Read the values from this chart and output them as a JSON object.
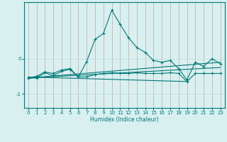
{
  "xlabel": "Humidex (Indice chaleur)",
  "bg_color": "#d8f0f0",
  "grid_color": "#c0dede",
  "line_color": "#007878",
  "xlim": [
    -0.5,
    23.5
  ],
  "ylim": [
    -1.4,
    1.6
  ],
  "xticks": [
    0,
    1,
    2,
    3,
    4,
    5,
    6,
    7,
    8,
    9,
    10,
    11,
    12,
    13,
    14,
    15,
    16,
    17,
    18,
    19,
    20,
    21,
    22,
    23
  ],
  "ytick_vals": [
    -1,
    0
  ],
  "series1_x": [
    0,
    1,
    2,
    3,
    4,
    5,
    6,
    7,
    8,
    9,
    10,
    11,
    12,
    13,
    14,
    15,
    16,
    17,
    18,
    19,
    20,
    21,
    22,
    23
  ],
  "series1_y": [
    -0.55,
    -0.5,
    -0.38,
    -0.42,
    -0.32,
    -0.28,
    -0.52,
    -0.08,
    0.55,
    0.72,
    1.38,
    0.98,
    0.6,
    0.32,
    0.18,
    -0.05,
    -0.1,
    -0.05,
    -0.28,
    -0.6,
    -0.1,
    -0.22,
    0.0,
    -0.15
  ],
  "series2_x": [
    0,
    1,
    2,
    3,
    4,
    5,
    6,
    7,
    8,
    9,
    10,
    11,
    12,
    13,
    14,
    15,
    16,
    17,
    18,
    19,
    20,
    21,
    22,
    23
  ],
  "series2_y": [
    -0.55,
    -0.55,
    -0.4,
    -0.48,
    -0.36,
    -0.3,
    -0.52,
    -0.52,
    -0.45,
    -0.42,
    -0.4,
    -0.42,
    -0.42,
    -0.4,
    -0.42,
    -0.42,
    -0.42,
    -0.4,
    -0.42,
    -0.65,
    -0.42,
    -0.42,
    -0.42,
    -0.42
  ],
  "trend1_x": [
    0,
    23
  ],
  "trend1_y": [
    -0.55,
    -0.1
  ],
  "trend2_x": [
    0,
    23
  ],
  "trend2_y": [
    -0.55,
    -0.25
  ],
  "trend3_x": [
    0,
    19
  ],
  "trend3_y": [
    -0.52,
    -0.65
  ],
  "xlabel_fontsize": 5.5,
  "tick_fontsize": 5.0
}
